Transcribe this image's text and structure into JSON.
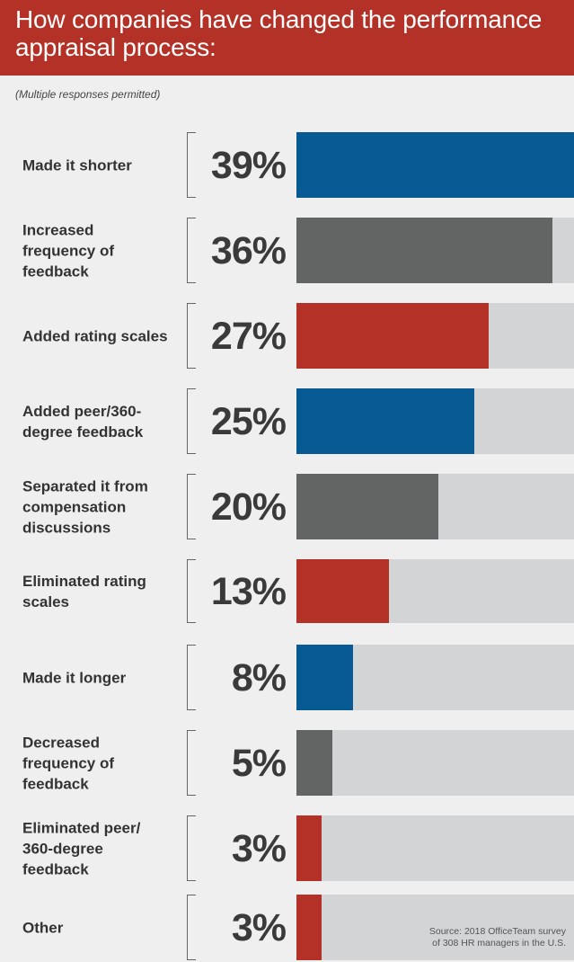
{
  "header": {
    "title": "How companies have changed the performance appraisal process:",
    "subtitle": "(Multiple responses permitted)"
  },
  "source": {
    "line1": "Source: 2018 OfficeTeam survey",
    "line2": "of 308 HR managers in the U.S."
  },
  "colors": {
    "header_bg": "#b33126",
    "blue": "#075a93",
    "gray": "#636464",
    "red": "#b33126",
    "track": "#d3d4d5"
  },
  "chart_data": {
    "type": "bar",
    "orientation": "horizontal",
    "title": "How companies have changed the performance appraisal process:",
    "subtitle": "(Multiple responses permitted)",
    "categories": [
      "Made it shorter",
      "Increased frequency of feedback",
      "Added rating scales",
      "Added peer/360-degree feedback",
      "Separated it from compensation discussions",
      "Eliminated rating scales",
      "Made it longer",
      "Decreased frequency of feedback",
      "Eliminated peer/360-degree feedback",
      "Other"
    ],
    "values": [
      39,
      36,
      27,
      25,
      20,
      13,
      8,
      5,
      3,
      3
    ],
    "value_labels": [
      "39%",
      "36%",
      "27%",
      "25%",
      "20%",
      "13%",
      "8%",
      "5%",
      "3%",
      "3%"
    ],
    "bar_colors": [
      "#075a93",
      "#636464",
      "#b33126",
      "#075a93",
      "#636464",
      "#b33126",
      "#075a93",
      "#636464",
      "#b33126",
      "#b33126"
    ],
    "xlim": [
      0,
      39
    ],
    "grid": false,
    "legend": "none"
  }
}
